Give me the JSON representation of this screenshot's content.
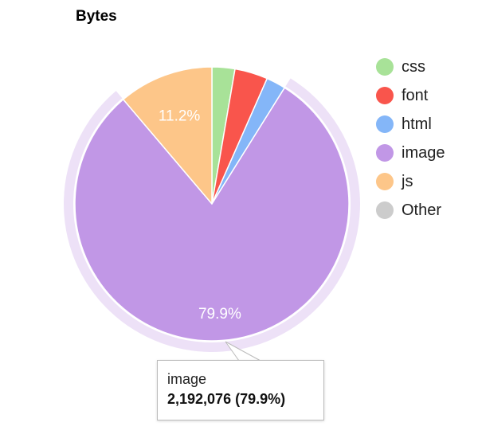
{
  "chart_data": {
    "type": "pie",
    "title": "Bytes",
    "categories": [
      "css",
      "font",
      "html",
      "image",
      "js",
      "Other"
    ],
    "values": [
      2.7,
      3.9,
      2.3,
      79.9,
      11.2,
      0
    ],
    "data_labels": {
      "image": "79.9%",
      "js": "11.2%"
    },
    "colors": {
      "css": "#a8e298",
      "font": "#f9554c",
      "html": "#84b6f8",
      "image": "#c197e6",
      "js": "#fdc689",
      "Other": "#cccccc"
    },
    "highlighted": "image",
    "legend_position": "right"
  },
  "legend": [
    {
      "label": "css",
      "color": "#a8e298"
    },
    {
      "label": "font",
      "color": "#f9554c"
    },
    {
      "label": "html",
      "color": "#84b6f8"
    },
    {
      "label": "image",
      "color": "#c197e6"
    },
    {
      "label": "js",
      "color": "#fdc689"
    },
    {
      "label": "Other",
      "color": "#cccccc"
    }
  ],
  "tooltip": {
    "name": "image",
    "value": "2,192,076 (79.9%)"
  },
  "highlight_ring_color": "#ede1f7"
}
